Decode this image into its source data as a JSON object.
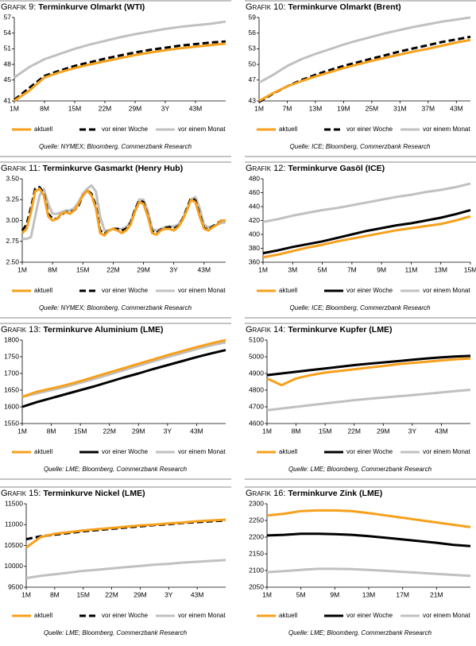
{
  "chart_data": [
    {
      "type": "line",
      "label": "Grafik 9:",
      "title": "Terminkurve Olmarkt (WTI)",
      "source": "Quelle: NYMEX; Bloomberg, Commerzbank Research",
      "categories": [
        "1M",
        null,
        "8M",
        null,
        "15M",
        null,
        "22M",
        null,
        "29M",
        null,
        "3Y",
        null,
        "43M",
        null,
        null
      ],
      "ylim": [
        41,
        57
      ],
      "yticks": [
        41,
        45,
        48,
        51,
        54,
        57
      ],
      "series": [
        {
          "name": "aktuell",
          "color": "#f7a01c",
          "style": "solid",
          "values": [
            41,
            43,
            45.5,
            46.5,
            47.3,
            48,
            48.6,
            49.2,
            49.8,
            50.3,
            50.7,
            51.1,
            51.4,
            51.7,
            52
          ]
        },
        {
          "name": "vor einer Woche",
          "color": "#000000",
          "style": "dashed",
          "values": [
            41.2,
            43.5,
            45.8,
            46.8,
            47.7,
            48.4,
            49.1,
            49.7,
            50.3,
            50.8,
            51.2,
            51.6,
            51.9,
            52.2,
            52.4
          ]
        },
        {
          "name": "vor einem Monat",
          "color": "#c0c0c0",
          "style": "solid",
          "values": [
            45.5,
            47.5,
            49,
            50,
            51,
            51.8,
            52.5,
            53.2,
            53.8,
            54.3,
            54.8,
            55.2,
            55.5,
            55.8,
            56.2
          ]
        }
      ]
    },
    {
      "type": "line",
      "label": "Grafik 10:",
      "title": "Terminkurve Olmarkt (Brent)",
      "source": "Quelle: ICE; Bloomberg, Commerzbank Research",
      "categories": [
        "1M",
        null,
        "7M",
        null,
        "13M",
        null,
        "19M",
        null,
        "25M",
        null,
        "31M",
        null,
        "37M",
        null,
        "43M",
        null
      ],
      "ylim": [
        43,
        59
      ],
      "yticks": [
        43,
        47,
        50,
        53,
        56,
        59
      ],
      "series": [
        {
          "name": "aktuell",
          "color": "#f7a01c",
          "style": "solid",
          "values": [
            43,
            44.5,
            45.8,
            46.8,
            47.7,
            48.5,
            49.3,
            50,
            50.7,
            51.3,
            51.9,
            52.5,
            53,
            53.6,
            54.2,
            54.7
          ]
        },
        {
          "name": "vor einer Woche",
          "color": "#000000",
          "style": "dashed",
          "values": [
            42.8,
            44.4,
            45.8,
            47,
            48,
            48.9,
            49.7,
            50.4,
            51.1,
            51.8,
            52.5,
            53.1,
            53.7,
            54.3,
            54.8,
            55.3
          ]
        },
        {
          "name": "vor einem Monat",
          "color": "#c0c0c0",
          "style": "solid",
          "values": [
            46.5,
            48,
            49.7,
            51,
            52,
            52.9,
            53.8,
            54.6,
            55.3,
            56,
            56.6,
            57.2,
            57.7,
            58.2,
            58.6,
            59
          ]
        }
      ]
    },
    {
      "type": "line",
      "label": "Grafik 11:",
      "title": "Terminkurve Gasmarkt (Henry Hub)",
      "source": "Quelle: NYMEX; Bloomberg, Commerzbank Research",
      "categories": [
        "1M",
        null,
        null,
        null,
        null,
        null,
        null,
        "8M",
        null,
        null,
        null,
        null,
        null,
        null,
        "15M",
        null,
        null,
        null,
        null,
        null,
        null,
        "22M",
        null,
        null,
        null,
        null,
        null,
        null,
        "29M",
        null,
        null,
        null,
        null,
        null,
        null,
        "3Y",
        null,
        null,
        null,
        null,
        null,
        null,
        "43M",
        null,
        null,
        null,
        null,
        null
      ],
      "ylim": [
        2.5,
        3.5
      ],
      "yticks": [
        {
          "value": 2.5,
          "label": "2.50"
        },
        {
          "value": 2.75,
          "label": "2.75"
        },
        {
          "value": 3,
          "label": "3.00"
        },
        {
          "value": 3.25,
          "label": "3.25"
        },
        {
          "value": 3.5,
          "label": "3.50"
        }
      ],
      "series": [
        {
          "name": "aktuell",
          "color": "#f7a01c",
          "style": "solid",
          "values": [
            2.85,
            2.9,
            3.1,
            3.35,
            3.38,
            3.3,
            3.05,
            3.0,
            3.02,
            3.08,
            3.1,
            3.08,
            3.12,
            3.2,
            3.3,
            3.36,
            3.3,
            3.15,
            2.85,
            2.82,
            2.88,
            2.9,
            2.88,
            2.85,
            2.88,
            2.95,
            3.1,
            3.22,
            3.2,
            3.05,
            2.85,
            2.83,
            2.88,
            2.9,
            2.9,
            2.88,
            2.92,
            3.0,
            3.12,
            3.25,
            3.22,
            3.05,
            2.9,
            2.88,
            2.92,
            2.95,
            3.0,
            3.0
          ]
        },
        {
          "name": "vor einer Woche",
          "color": "#000000",
          "style": "dashed",
          "values": [
            2.88,
            2.95,
            3.15,
            3.38,
            3.4,
            3.32,
            3.08,
            3.02,
            3.02,
            3.07,
            3.1,
            3.1,
            3.12,
            3.18,
            3.3,
            3.36,
            3.32,
            3.18,
            2.88,
            2.84,
            2.88,
            2.9,
            2.9,
            2.88,
            2.9,
            2.97,
            3.12,
            3.24,
            3.22,
            3.06,
            2.87,
            2.85,
            2.89,
            2.91,
            2.92,
            2.9,
            2.93,
            3.01,
            3.14,
            3.27,
            3.24,
            3.07,
            2.91,
            2.89,
            2.93,
            2.96,
            3.0,
            3.0
          ]
        },
        {
          "name": "vor einem Monat",
          "color": "#c0c0c0",
          "style": "solid",
          "values": [
            2.78,
            2.78,
            2.8,
            3.05,
            3.3,
            3.38,
            3.2,
            3.08,
            3.08,
            3.1,
            3.12,
            3.12,
            3.15,
            3.22,
            3.32,
            3.38,
            3.42,
            3.35,
            3.05,
            2.88,
            2.88,
            2.9,
            2.9,
            2.9,
            2.92,
            2.98,
            3.12,
            3.25,
            3.25,
            3.12,
            2.9,
            2.88,
            2.9,
            2.92,
            2.93,
            2.93,
            2.95,
            3.02,
            3.12,
            3.25,
            3.28,
            3.15,
            2.95,
            2.92,
            2.93,
            2.95,
            2.97,
            2.98
          ]
        }
      ]
    },
    {
      "type": "line",
      "label": "Grafik 12:",
      "title": "Terminkurve Gasöl (ICE)",
      "source": "Quelle: ICE; Bloomberg, Commerzbank Research",
      "categories": [
        "1M",
        null,
        "3M",
        null,
        "5M",
        null,
        "7M",
        null,
        "9M",
        null,
        "11M",
        null,
        "13M",
        null,
        "15M"
      ],
      "ylim": [
        360,
        480
      ],
      "yticks": [
        360,
        380,
        400,
        420,
        440,
        460,
        480
      ],
      "series": [
        {
          "name": "aktuell",
          "color": "#f7a01c",
          "style": "solid",
          "values": [
            367,
            371,
            376,
            381,
            385,
            390,
            394,
            398,
            402,
            406,
            409,
            412,
            415,
            420,
            426
          ]
        },
        {
          "name": "vor einer Woche",
          "color": "#000000",
          "style": "solid",
          "values": [
            373,
            377,
            382,
            386,
            390,
            395,
            400,
            405,
            409,
            413,
            416,
            420,
            424,
            429,
            435
          ]
        },
        {
          "name": "vor einem Monat",
          "color": "#c0c0c0",
          "style": "solid",
          "values": [
            418,
            422,
            427,
            431,
            435,
            438,
            442,
            446,
            450,
            454,
            457,
            461,
            464,
            468,
            473
          ]
        }
      ]
    },
    {
      "type": "line",
      "label": "Grafik 13:",
      "title": "Terminkurve Aluminium (LME)",
      "source": "Quelle: LME; Bloomberg, Commerzbank Research",
      "categories": [
        "1M",
        null,
        "8M",
        null,
        "15M",
        null,
        "22M",
        null,
        "29M",
        null,
        "3Y",
        null,
        "43M",
        null,
        null
      ],
      "ylim": [
        1550,
        1800
      ],
      "yticks": [
        1550,
        1600,
        1650,
        1700,
        1750,
        1800
      ],
      "series": [
        {
          "name": "aktuell",
          "color": "#f7a01c",
          "style": "solid",
          "values": [
            1630,
            1645,
            1655,
            1665,
            1677,
            1690,
            1703,
            1716,
            1729,
            1742,
            1755,
            1767,
            1779,
            1790,
            1800
          ]
        },
        {
          "name": "vor einer Woche",
          "color": "#000000",
          "style": "solid",
          "values": [
            1600,
            1614,
            1626,
            1638,
            1650,
            1662,
            1675,
            1688,
            1700,
            1713,
            1725,
            1737,
            1749,
            1760,
            1770
          ]
        },
        {
          "name": "vor einem Monat",
          "color": "#c0c0c0",
          "style": "solid",
          "values": [
            1630,
            1640,
            1650,
            1660,
            1672,
            1684,
            1697,
            1710,
            1723,
            1736,
            1749,
            1761,
            1773,
            1784,
            1793
          ]
        }
      ]
    },
    {
      "type": "line",
      "label": "Grafik 14:",
      "title": "Terminkurve Kupfer (LME)",
      "source": "Quelle: LME; Bloomberg, Commerzbank Research",
      "categories": [
        "1M",
        null,
        "8M",
        null,
        "15M",
        null,
        "22M",
        null,
        "29M",
        null,
        "3Y",
        null,
        "43M",
        null,
        null
      ],
      "ylim": [
        4600,
        5100
      ],
      "yticks": [
        4600,
        4700,
        4800,
        4900,
        5000,
        5100
      ],
      "series": [
        {
          "name": "aktuell",
          "color": "#f7a01c",
          "style": "solid",
          "values": [
            4870,
            4830,
            4870,
            4890,
            4905,
            4915,
            4925,
            4935,
            4945,
            4955,
            4963,
            4970,
            4978,
            4985,
            4990
          ]
        },
        {
          "name": "vor einer Woche",
          "color": "#000000",
          "style": "solid",
          "values": [
            4890,
            4900,
            4910,
            4920,
            4930,
            4940,
            4950,
            4958,
            4966,
            4974,
            4982,
            4990,
            4996,
            5002,
            5005
          ]
        },
        {
          "name": "vor einem Monat",
          "color": "#c0c0c0",
          "style": "solid",
          "values": [
            4680,
            4690,
            4700,
            4710,
            4720,
            4730,
            4740,
            4748,
            4755,
            4763,
            4770,
            4778,
            4786,
            4795,
            4802
          ]
        }
      ]
    },
    {
      "type": "line",
      "label": "Grafik 15:",
      "title": "Terminkurve Nickel (LME)",
      "source": "Quelle: LME; Bloomberg, Commerzbank Research",
      "categories": [
        "1M",
        null,
        "8M",
        null,
        "15M",
        null,
        "22M",
        null,
        "29M",
        null,
        "3Y",
        null,
        "43M",
        null,
        null
      ],
      "ylim": [
        9500,
        11500
      ],
      "yticks": [
        9500,
        10000,
        10500,
        11000,
        11500
      ],
      "series": [
        {
          "name": "aktuell",
          "color": "#f7a01c",
          "style": "solid",
          "values": [
            10450,
            10700,
            10780,
            10820,
            10860,
            10890,
            10920,
            10950,
            10980,
            11000,
            11030,
            11050,
            11080,
            11100,
            11120
          ]
        },
        {
          "name": "vor einer Woche",
          "color": "#000000",
          "style": "dashed",
          "values": [
            10650,
            10720,
            10760,
            10800,
            10840,
            10870,
            10900,
            10930,
            10960,
            10990,
            11010,
            11040,
            11060,
            11080,
            11100
          ]
        },
        {
          "name": "vor einem Monat",
          "color": "#c0c0c0",
          "style": "solid",
          "values": [
            9720,
            9770,
            9810,
            9850,
            9890,
            9920,
            9950,
            9980,
            10010,
            10040,
            10060,
            10090,
            10110,
            10130,
            10150
          ]
        }
      ]
    },
    {
      "type": "line",
      "label": "Grafik 16:",
      "title": "Terminkurve Zink (LME)",
      "source": "Quelle: LME; Bloomberg, Commerzbank Research",
      "categories": [
        "1M",
        null,
        "5M",
        null,
        "9M",
        null,
        "13M",
        null,
        "17M",
        null,
        "21M",
        null,
        null
      ],
      "ylim": [
        2050,
        2300
      ],
      "yticks": [
        2050,
        2100,
        2150,
        2200,
        2250,
        2300
      ],
      "series": [
        {
          "name": "aktuell",
          "color": "#f7a01c",
          "style": "solid",
          "values": [
            2265,
            2270,
            2278,
            2280,
            2280,
            2278,
            2272,
            2265,
            2258,
            2251,
            2244,
            2237,
            2230
          ]
        },
        {
          "name": "vor einer Woche",
          "color": "#000000",
          "style": "solid",
          "values": [
            2205,
            2207,
            2210,
            2210,
            2209,
            2207,
            2203,
            2198,
            2193,
            2188,
            2183,
            2177,
            2173
          ]
        },
        {
          "name": "vor einem Monat",
          "color": "#c0c0c0",
          "style": "solid",
          "values": [
            2095,
            2098,
            2102,
            2105,
            2105,
            2104,
            2102,
            2099,
            2096,
            2093,
            2090,
            2087,
            2084
          ]
        }
      ]
    }
  ]
}
